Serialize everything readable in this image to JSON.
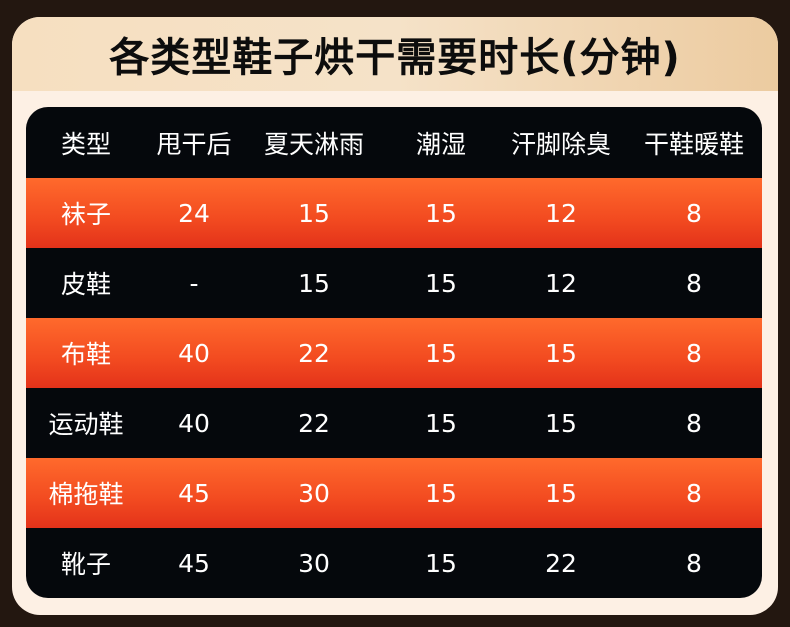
{
  "title": "各类型鞋子烘干需要时长(分钟)",
  "colors": {
    "background": "#231710",
    "card": "#fdf0e4",
    "table_dark": "#05080c",
    "row_accent": "#f24a20"
  },
  "table": {
    "headers": [
      "类型",
      "甩干后",
      "夏天淋雨",
      "潮湿",
      "汗脚除臭",
      "干鞋暖鞋"
    ],
    "rows": [
      [
        "袜子",
        "24",
        "15",
        "15",
        "12",
        "8"
      ],
      [
        "皮鞋",
        "-",
        "15",
        "15",
        "12",
        "8"
      ],
      [
        "布鞋",
        "40",
        "22",
        "15",
        "15",
        "8"
      ],
      [
        "运动鞋",
        "40",
        "22",
        "15",
        "15",
        "8"
      ],
      [
        "棉拖鞋",
        "45",
        "30",
        "15",
        "15",
        "8"
      ],
      [
        "靴子",
        "45",
        "30",
        "15",
        "22",
        "8"
      ]
    ]
  }
}
